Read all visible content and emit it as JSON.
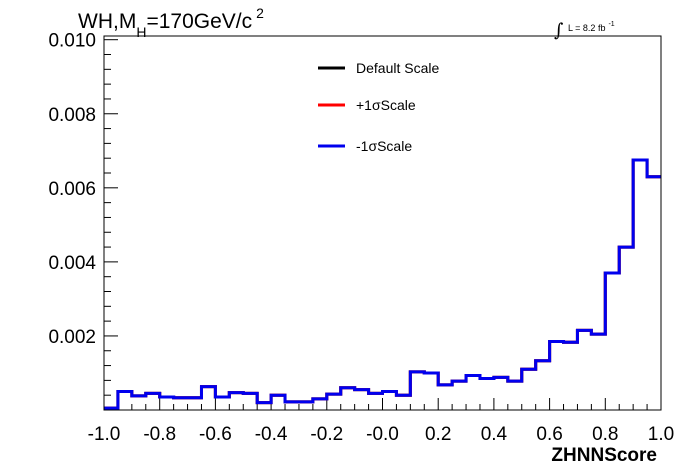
{
  "chart_data": {
    "type": "line",
    "title_parts": {
      "pre": "WH,M",
      "sub": "H",
      "mid": "=170GeV/c",
      "sup": "2"
    },
    "lumi_label": "L = 8.2 fb",
    "lumi_sup": "-1",
    "xlabel": "ZHNNScore",
    "ylabel": "",
    "xlim": [
      -1.0,
      1.0
    ],
    "ylim": [
      0.0,
      0.0101
    ],
    "x_ticks": [
      -1.0,
      -0.8,
      -0.6,
      -0.4,
      -0.2,
      0.0,
      0.2,
      0.4,
      0.6,
      0.8,
      1.0
    ],
    "x_tick_labels": [
      "-1.0",
      "-0.8",
      "-0.6",
      "-0.4",
      "-0.2",
      "-0.0",
      "0.2",
      "0.4",
      "0.6",
      "0.8",
      "1.0"
    ],
    "y_ticks": [
      0.002,
      0.004,
      0.006,
      0.008,
      0.01
    ],
    "y_tick_labels": [
      "0.002",
      "0.004",
      "0.006",
      "0.008",
      "0.010"
    ],
    "legend_position": "top-center",
    "bin_edges_start": -1.0,
    "bin_width": 0.05,
    "series": [
      {
        "name": "Default Scale",
        "color": "#000000",
        "values": [
          5e-05,
          0.0005,
          0.00038,
          0.00045,
          0.00035,
          0.00033,
          0.00033,
          0.00063,
          0.00035,
          0.00047,
          0.00045,
          0.0002,
          0.0004,
          0.00022,
          0.00022,
          0.0003,
          0.00043,
          0.0006,
          0.00055,
          0.00045,
          0.0005,
          0.0004,
          0.00103,
          0.001,
          0.00068,
          0.00078,
          0.00093,
          0.00085,
          0.00088,
          0.00078,
          0.0011,
          0.00133,
          0.00185,
          0.00183,
          0.00215,
          0.00205,
          0.0037,
          0.0044,
          0.00675,
          0.0063
        ]
      },
      {
        "name": "+1σScale",
        "color": "#ff0000",
        "values": [
          5e-05,
          0.0005,
          0.00038,
          0.00045,
          0.00035,
          0.00033,
          0.00033,
          0.00063,
          0.00035,
          0.00047,
          0.00045,
          0.0002,
          0.0004,
          0.00022,
          0.00022,
          0.0003,
          0.00043,
          0.0006,
          0.00055,
          0.00045,
          0.0005,
          0.0004,
          0.00103,
          0.001,
          0.00068,
          0.00078,
          0.00093,
          0.00085,
          0.00088,
          0.00078,
          0.0011,
          0.00133,
          0.00185,
          0.00183,
          0.00215,
          0.00205,
          0.0037,
          0.0044,
          0.00675,
          0.0063
        ]
      },
      {
        "name": "-1σScale",
        "color": "#0000ee",
        "values": [
          5e-05,
          0.0005,
          0.00038,
          0.00045,
          0.00035,
          0.00033,
          0.00033,
          0.00063,
          0.00035,
          0.00047,
          0.00045,
          0.0002,
          0.0004,
          0.00022,
          0.00022,
          0.0003,
          0.00043,
          0.0006,
          0.00055,
          0.00045,
          0.0005,
          0.0004,
          0.00103,
          0.001,
          0.00068,
          0.00078,
          0.00093,
          0.00085,
          0.00088,
          0.00078,
          0.0011,
          0.00133,
          0.00185,
          0.00183,
          0.00215,
          0.00205,
          0.0037,
          0.0044,
          0.00675,
          0.0063
        ]
      }
    ]
  }
}
